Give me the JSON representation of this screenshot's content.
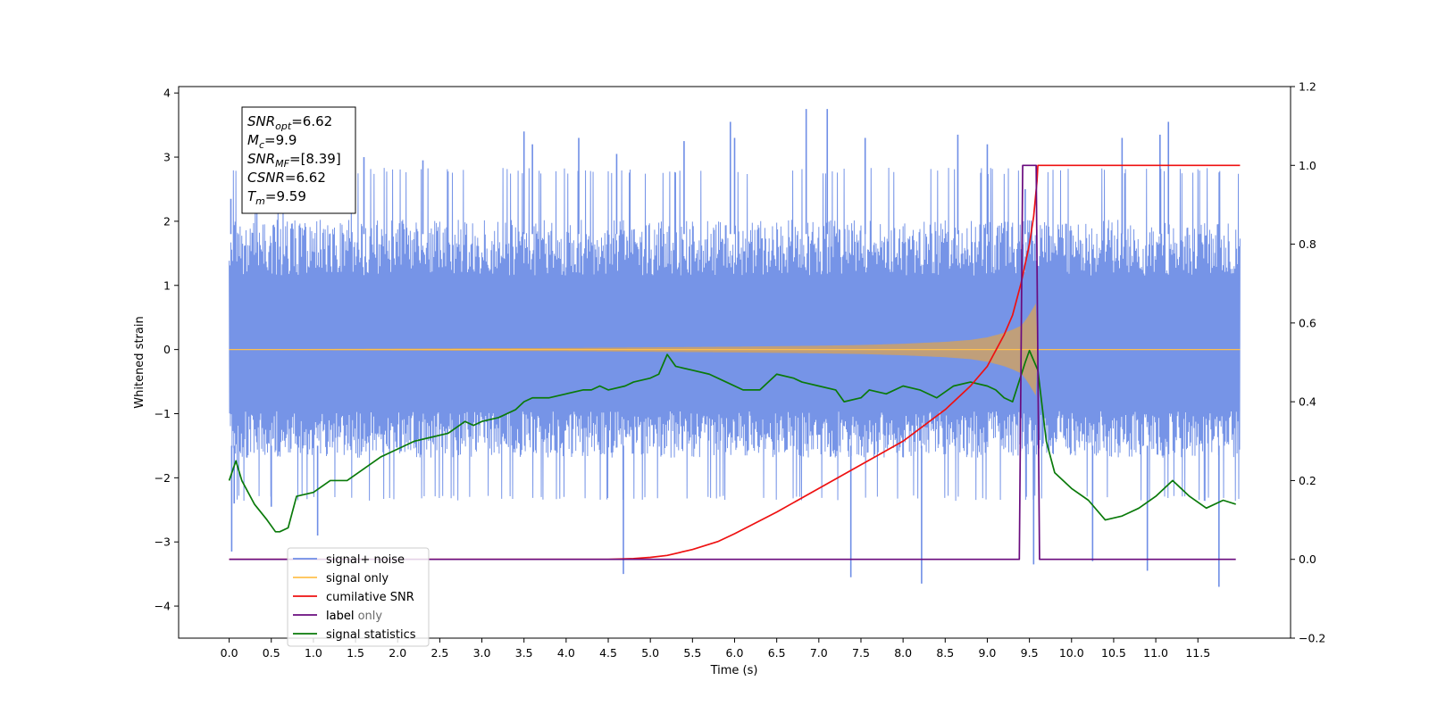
{
  "chart_data": {
    "type": "line",
    "xlabel": "Time (s)",
    "ylabel": "Whitened strain",
    "y2label": "",
    "xlim": [
      -0.6,
      12.6
    ],
    "ylim": [
      -4.5,
      4.1
    ],
    "y2lim": [
      -0.2,
      1.2
    ],
    "x_ticks": [
      0.0,
      0.5,
      1.0,
      1.5,
      2.0,
      2.5,
      3.0,
      3.5,
      4.0,
      4.5,
      5.0,
      5.5,
      6.0,
      6.5,
      7.0,
      7.5,
      8.0,
      8.5,
      9.0,
      9.5,
      10.0,
      10.5,
      11.0,
      11.5
    ],
    "x_tick_labels": [
      "0.0",
      "0.5",
      "1.0",
      "1.5",
      "2.0",
      "2.5",
      "3.0",
      "3.5",
      "4.0",
      "4.5",
      "5.0",
      "5.5",
      "6.0",
      "6.5",
      "7.0",
      "7.5",
      "8.0",
      "8.5",
      "9.0",
      "9.5",
      "10.0",
      "10.5",
      "11.0",
      "11.5"
    ],
    "y_ticks": [
      -4,
      -3,
      -2,
      -1,
      0,
      1,
      2,
      3,
      4
    ],
    "y_tick_labels": [
      "−4",
      "−3",
      "−2",
      "−1",
      "0",
      "1",
      "2",
      "3",
      "4"
    ],
    "y2_ticks": [
      -0.2,
      0.0,
      0.2,
      0.4,
      0.6,
      0.8,
      1.0,
      1.2
    ],
    "y2_tick_labels": [
      "−0.2",
      "0.0",
      "0.2",
      "0.4",
      "0.6",
      "0.8",
      "1.0",
      "1.2"
    ],
    "grid": false,
    "legend_placement": "lower-left",
    "annotation": [
      {
        "main": "SNR",
        "sub": "opt",
        "rest": "=6.62"
      },
      {
        "main": "M",
        "sub": "c",
        "rest": "=9.9"
      },
      {
        "main": "SNR",
        "sub": "MF",
        "rest": "=[8.39]"
      },
      {
        "main": "CSNR",
        "sub": "",
        "rest": "=6.62"
      },
      {
        "main": "T",
        "sub": "m",
        "rest": "=9.59"
      }
    ],
    "series": [
      {
        "name": "signal+ noise",
        "axis": "left",
        "color": "#6f8ee6",
        "kind": "noise",
        "x_range": [
          0.0,
          12.0
        ],
        "band_inner": [
          -1.75,
          2.1
        ],
        "extreme_range": [
          -3.7,
          3.75
        ],
        "extreme_peaks": [
          [
            0.02,
            2.35
          ],
          [
            0.03,
            -3.15
          ],
          [
            0.06,
            -2.4
          ],
          [
            0.5,
            -2.45
          ],
          [
            1.05,
            -2.9
          ],
          [
            1.6,
            3.0
          ],
          [
            2.3,
            2.95
          ],
          [
            3.5,
            3.4
          ],
          [
            3.6,
            3.2
          ],
          [
            4.15,
            3.3
          ],
          [
            4.6,
            3.05
          ],
          [
            4.68,
            -3.5
          ],
          [
            5.4,
            3.25
          ],
          [
            5.95,
            3.55
          ],
          [
            6.0,
            3.3
          ],
          [
            6.85,
            3.75
          ],
          [
            7.1,
            3.75
          ],
          [
            7.38,
            -3.55
          ],
          [
            7.55,
            3.3
          ],
          [
            8.22,
            -3.65
          ],
          [
            8.65,
            3.35
          ],
          [
            9.0,
            3.2
          ],
          [
            9.45,
            2.5
          ],
          [
            9.55,
            -3.35
          ],
          [
            10.25,
            -3.3
          ],
          [
            10.6,
            3.3
          ],
          [
            10.9,
            -3.45
          ],
          [
            11.05,
            3.35
          ],
          [
            11.15,
            3.55
          ],
          [
            11.75,
            -3.7
          ]
        ]
      },
      {
        "name": "signal only",
        "axis": "left",
        "color": "#ffc04d",
        "kind": "chirp",
        "x": [
          0.0,
          1.0,
          2.0,
          3.0,
          4.0,
          5.0,
          6.0,
          7.0,
          7.5,
          8.0,
          8.5,
          8.8,
          9.0,
          9.2,
          9.3,
          9.4,
          9.45,
          9.5,
          9.55,
          9.59,
          9.6,
          12.0
        ],
        "amplitude": [
          0.0,
          0.01,
          0.015,
          0.02,
          0.025,
          0.035,
          0.045,
          0.06,
          0.07,
          0.09,
          0.12,
          0.15,
          0.19,
          0.26,
          0.31,
          0.37,
          0.45,
          0.55,
          0.66,
          0.75,
          0.0,
          0.0
        ]
      },
      {
        "name": "cumilative SNR",
        "axis": "right",
        "color": "#ee1111",
        "x": [
          0.0,
          4.5,
          4.8,
          5.0,
          5.2,
          5.5,
          5.8,
          6.0,
          6.5,
          7.0,
          7.5,
          8.0,
          8.5,
          8.8,
          9.0,
          9.2,
          9.3,
          9.4,
          9.5,
          9.55,
          9.59,
          9.6,
          12.0
        ],
        "values": [
          0.0,
          0.0,
          0.002,
          0.005,
          0.01,
          0.025,
          0.045,
          0.065,
          0.12,
          0.18,
          0.24,
          0.3,
          0.38,
          0.44,
          0.49,
          0.57,
          0.62,
          0.7,
          0.8,
          0.87,
          0.96,
          1.0,
          1.0
        ]
      },
      {
        "name": "label",
        "axis": "right",
        "color": "#6a0b7e",
        "x": [
          0.0,
          9.38,
          9.42,
          9.58,
          9.62,
          11.95
        ],
        "values": [
          0.0,
          0.0,
          1.0,
          1.0,
          0.0,
          0.0
        ]
      },
      {
        "name": "signal statistics",
        "axis": "right",
        "color": "#0a7a0a",
        "x": [
          0.0,
          0.08,
          0.15,
          0.3,
          0.45,
          0.55,
          0.6,
          0.7,
          0.8,
          1.0,
          1.2,
          1.4,
          1.6,
          1.8,
          2.0,
          2.2,
          2.4,
          2.6,
          2.8,
          2.9,
          3.0,
          3.2,
          3.4,
          3.5,
          3.6,
          3.8,
          4.0,
          4.2,
          4.3,
          4.4,
          4.5,
          4.7,
          4.8,
          5.0,
          5.1,
          5.2,
          5.3,
          5.5,
          5.7,
          5.9,
          6.1,
          6.3,
          6.5,
          6.7,
          6.8,
          7.0,
          7.2,
          7.3,
          7.5,
          7.6,
          7.8,
          8.0,
          8.2,
          8.4,
          8.6,
          8.8,
          9.0,
          9.1,
          9.2,
          9.3,
          9.45,
          9.5,
          9.6,
          9.7,
          9.8,
          10.0,
          10.2,
          10.4,
          10.6,
          10.8,
          11.0,
          11.2,
          11.4,
          11.6,
          11.8,
          11.95
        ],
        "values": [
          0.2,
          0.25,
          0.2,
          0.14,
          0.1,
          0.07,
          0.07,
          0.08,
          0.16,
          0.17,
          0.2,
          0.2,
          0.23,
          0.26,
          0.28,
          0.3,
          0.31,
          0.32,
          0.35,
          0.34,
          0.35,
          0.36,
          0.38,
          0.4,
          0.41,
          0.41,
          0.42,
          0.43,
          0.43,
          0.44,
          0.43,
          0.44,
          0.45,
          0.46,
          0.47,
          0.52,
          0.49,
          0.48,
          0.47,
          0.45,
          0.43,
          0.43,
          0.47,
          0.46,
          0.45,
          0.44,
          0.43,
          0.4,
          0.41,
          0.43,
          0.42,
          0.44,
          0.43,
          0.41,
          0.44,
          0.45,
          0.44,
          0.43,
          0.41,
          0.4,
          0.5,
          0.53,
          0.48,
          0.3,
          0.22,
          0.18,
          0.15,
          0.1,
          0.11,
          0.13,
          0.16,
          0.2,
          0.16,
          0.13,
          0.15,
          0.14
        ]
      },
      {
        "name": "label only",
        "axis": "right",
        "color": "#ffc04d",
        "kind": "legend-only"
      }
    ]
  }
}
